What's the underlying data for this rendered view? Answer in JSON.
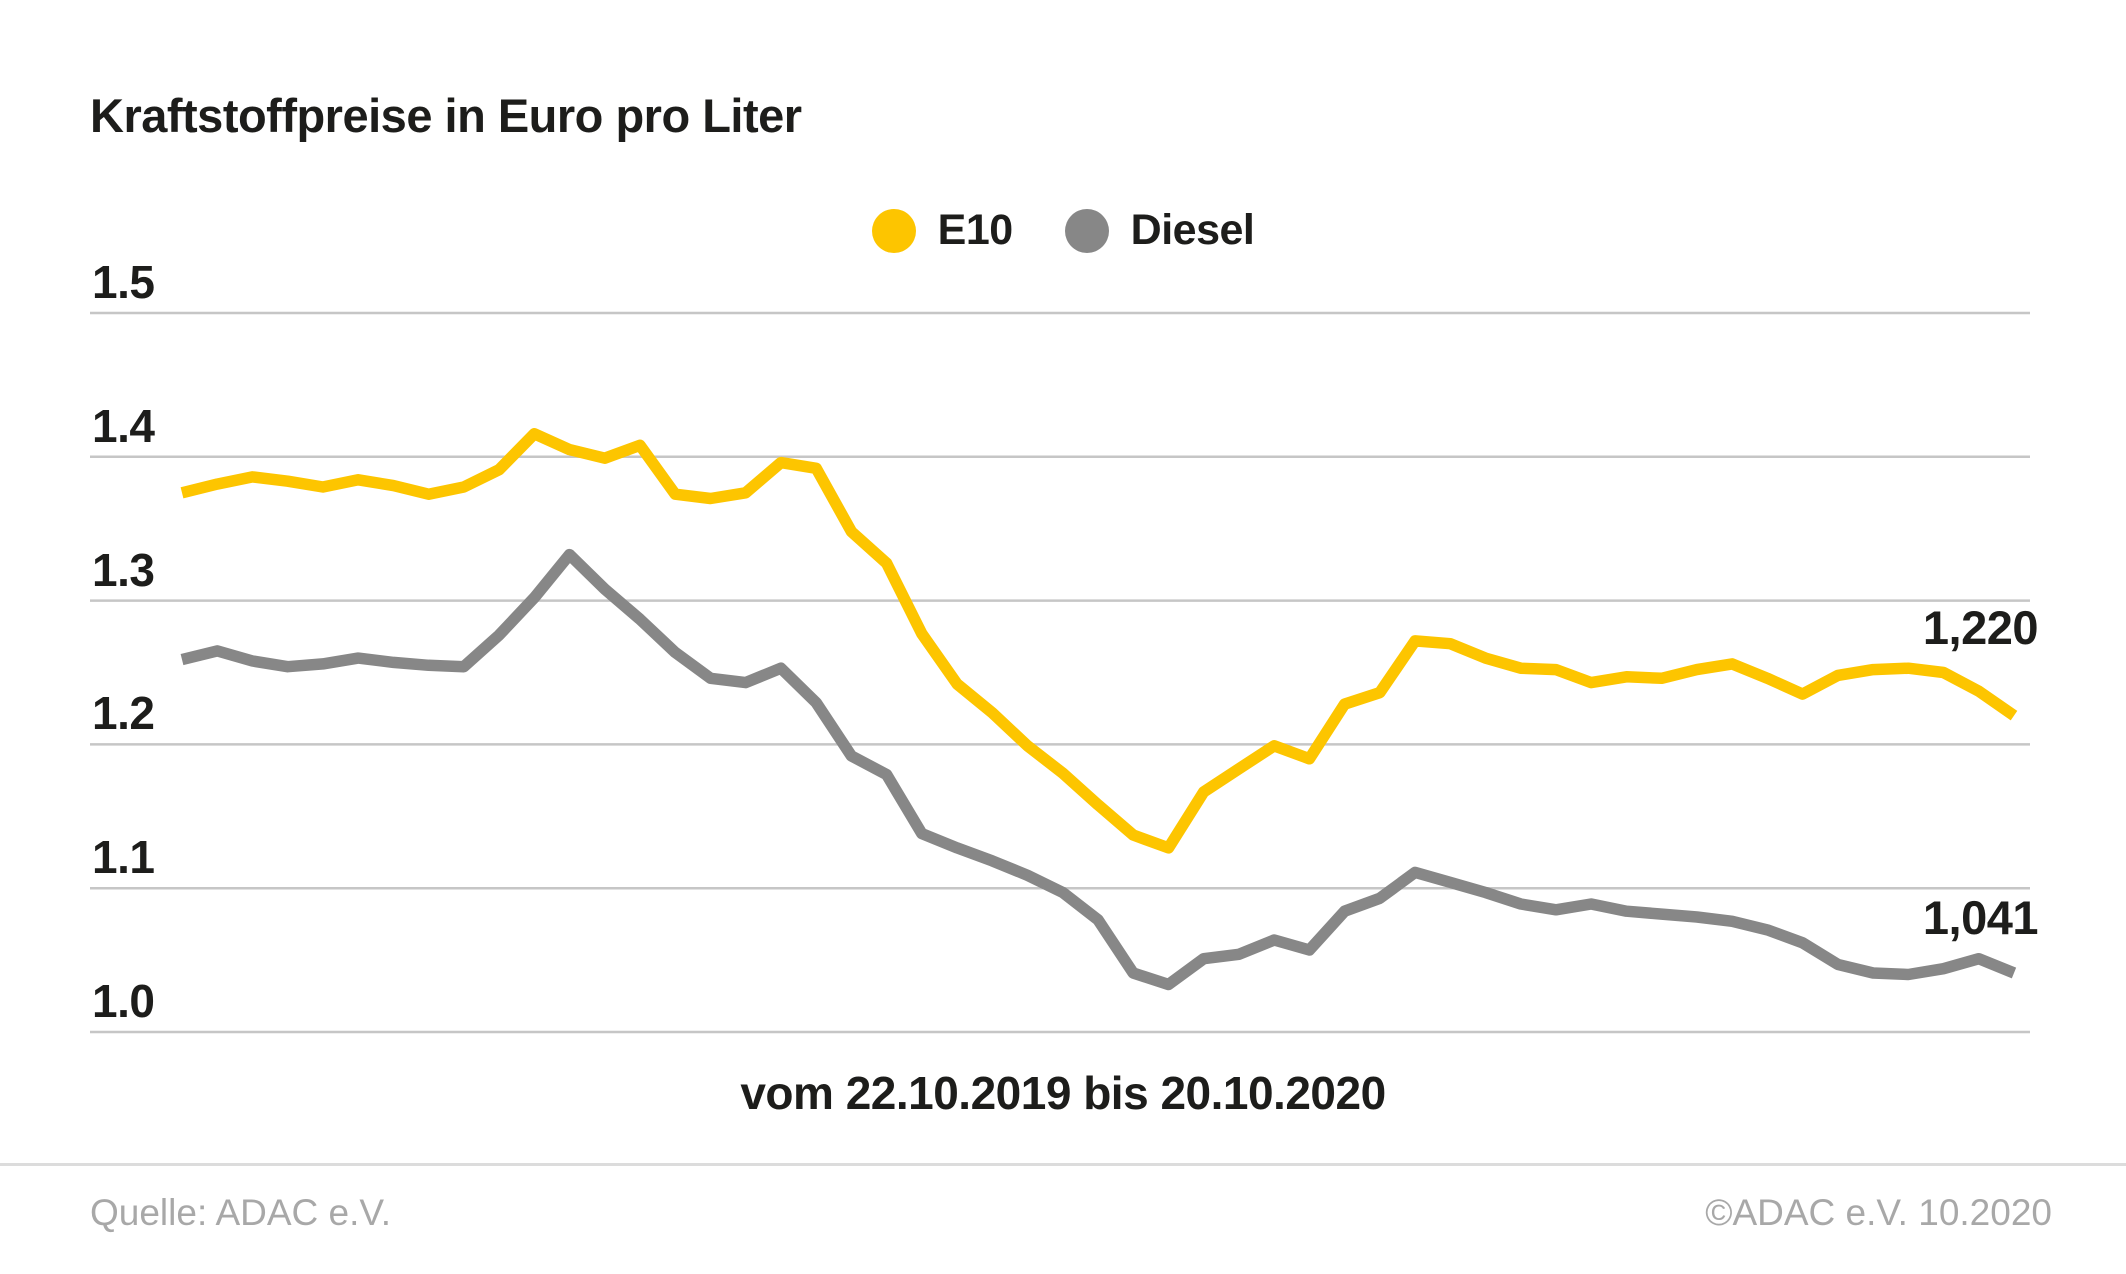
{
  "title": "Kraftstoffpreise in Euro pro Liter",
  "legend": [
    {
      "label": "E10",
      "color": "#fdc500"
    },
    {
      "label": "Diesel",
      "color": "#878787"
    }
  ],
  "x_axis_label": "vom 22.10.2019 bis 20.10.2020",
  "end_labels": {
    "e10": "1,220",
    "diesel": "1,041"
  },
  "footer": {
    "source": "Quelle: ADAC e.V.",
    "copyright": "©ADAC e.V. 10.2020"
  },
  "colors": {
    "e10_line": "#fdc500",
    "diesel_line": "#878787",
    "text_dark": "#1d1d1b",
    "gridline": "#c6c6c6",
    "footer_text": "#a8a8a8",
    "divider": "#dcdcdc",
    "background": "#ffffff"
  },
  "chart_data": {
    "type": "line",
    "title": "Kraftstoffpreise in Euro pro Liter",
    "xlabel": "vom 22.10.2019 bis 20.10.2020",
    "ylabel": "Euro pro Liter",
    "x_start": "22.10.2019",
    "x_end": "20.10.2020",
    "x_interval": "weekly",
    "n_points": 53,
    "ylim": [
      0.975,
      1.5
    ],
    "yticks": [
      {
        "v": 1.5,
        "label": "1.5"
      },
      {
        "v": 1.4,
        "label": "1.4"
      },
      {
        "v": 1.3,
        "label": "1.3"
      },
      {
        "v": 1.2,
        "label": "1.2"
      },
      {
        "v": 1.1,
        "label": "1.1"
      },
      {
        "v": 1.0,
        "label": "1.0"
      }
    ],
    "grid": "horizontal",
    "legend_position": "top-center",
    "series": [
      {
        "name": "E10",
        "color": "#fdc500",
        "end_value_label": "1,220",
        "values": [
          1.375,
          1.381,
          1.386,
          1.383,
          1.379,
          1.384,
          1.38,
          1.374,
          1.379,
          1.391,
          1.416,
          1.405,
          1.399,
          1.408,
          1.374,
          1.371,
          1.375,
          1.396,
          1.392,
          1.348,
          1.326,
          1.277,
          1.242,
          1.222,
          1.199,
          1.18,
          1.158,
          1.137,
          1.128,
          1.167,
          1.183,
          1.199,
          1.19,
          1.228,
          1.236,
          1.272,
          1.27,
          1.26,
          1.253,
          1.252,
          1.243,
          1.247,
          1.246,
          1.252,
          1.256,
          1.246,
          1.235,
          1.248,
          1.252,
          1.253,
          1.25,
          1.237,
          1.22
        ]
      },
      {
        "name": "Diesel",
        "color": "#878787",
        "end_value_label": "1,041",
        "values": [
          1.259,
          1.265,
          1.258,
          1.254,
          1.256,
          1.26,
          1.257,
          1.255,
          1.254,
          1.276,
          1.302,
          1.332,
          1.308,
          1.287,
          1.264,
          1.246,
          1.243,
          1.253,
          1.229,
          1.192,
          1.179,
          1.138,
          1.128,
          1.119,
          1.109,
          1.097,
          1.078,
          1.041,
          1.033,
          1.051,
          1.054,
          1.064,
          1.057,
          1.084,
          1.093,
          1.111,
          1.104,
          1.097,
          1.089,
          1.085,
          1.089,
          1.084,
          1.082,
          1.08,
          1.077,
          1.071,
          1.062,
          1.047,
          1.041,
          1.04,
          1.044,
          1.051,
          1.041
        ]
      }
    ]
  }
}
